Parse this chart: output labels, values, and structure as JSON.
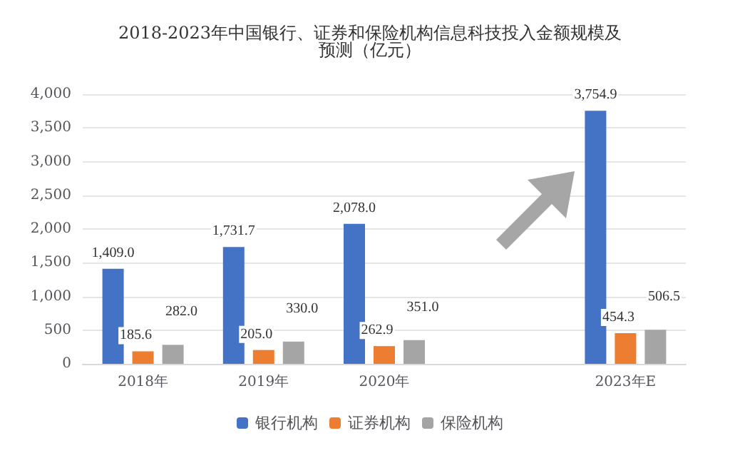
{
  "chart_data": {
    "type": "bar",
    "title": "2018-2023年中国银行、证券和保险机构信息科技投入金额规模及预测（亿元）",
    "categories": [
      "2018年",
      "2019年",
      "2020年",
      null,
      "2023年E"
    ],
    "series": [
      {
        "name": "银行机构",
        "color": "#4472c4",
        "values": [
          1409.0,
          1731.7,
          2078.0,
          null,
          3754.9
        ],
        "value_labels": [
          "1,409.0",
          "1,731.7",
          "2,078.0",
          null,
          "3,754.9"
        ]
      },
      {
        "name": "证券机构",
        "color": "#ed7d31",
        "values": [
          185.6,
          205.0,
          262.9,
          null,
          454.3
        ],
        "value_labels": [
          "185.6",
          "205.0",
          "262.9",
          null,
          "454.3"
        ]
      },
      {
        "name": "保险机构",
        "color": "#a5a5a5",
        "values": [
          282.0,
          330.0,
          351.0,
          null,
          506.5
        ],
        "value_labels": [
          "282.0",
          "330.0",
          "351.0",
          null,
          "506.5"
        ]
      }
    ],
    "ylim": [
      0,
      4000
    ],
    "yticks": [
      0,
      500,
      {
        "value": 1000,
        "label": "1,000"
      },
      {
        "value": 1500,
        "label": "1,500"
      },
      {
        "value": 2000,
        "label": "2,000"
      },
      {
        "value": 2500,
        "label": "2,500"
      },
      {
        "value": 3000,
        "label": "3,000"
      },
      {
        "value": 3500,
        "label": "3,500"
      },
      {
        "value": 4000,
        "label": "4,000"
      }
    ],
    "grid": "y",
    "legend": "bottom"
  }
}
